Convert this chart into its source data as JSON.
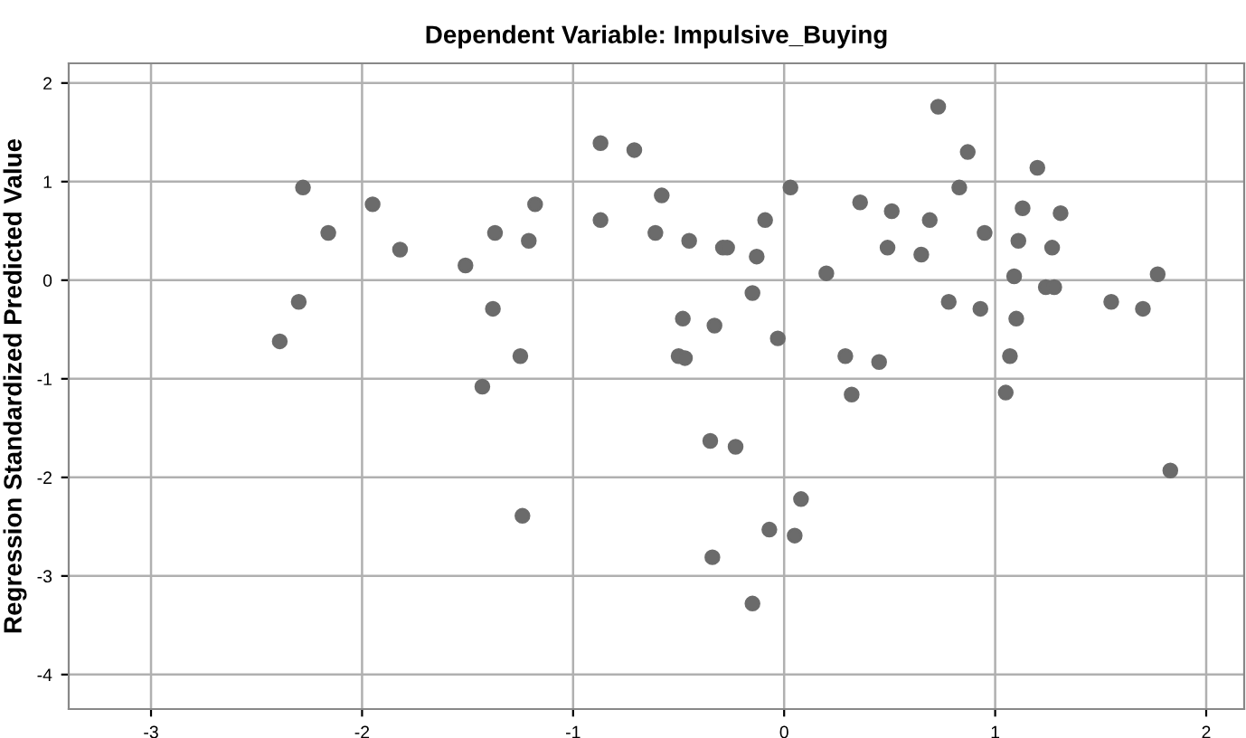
{
  "chart_data": {
    "type": "scatter",
    "title": "Dependent Variable: Impulsive_Buying",
    "ylabel": "Regression Standardized Predicted Value",
    "xlim": [
      -3.39,
      2.18
    ],
    "ylim": [
      -4.35,
      2.2
    ],
    "xticks": [
      -3,
      -2,
      -1,
      0,
      1,
      2
    ],
    "yticks": [
      -4,
      -3,
      -2,
      -1,
      0,
      1,
      2
    ],
    "grid": true,
    "marker": "circle",
    "series": [
      {
        "color": "#6b6b6b",
        "x": [
          -2.39,
          -2.28,
          -2.3,
          -2.16,
          -1.95,
          -1.82,
          -1.51,
          -1.43,
          -1.38,
          -1.37,
          -1.25,
          -1.24,
          -1.21,
          -1.18,
          -0.87,
          -0.87,
          -0.71,
          -0.61,
          -0.58,
          -0.48,
          -0.45,
          -0.5,
          -0.47,
          -0.35,
          -0.33,
          -0.34,
          -0.29,
          -0.27,
          -0.23,
          -0.15,
          -0.15,
          -0.13,
          -0.09,
          -0.07,
          -0.03,
          0.03,
          0.05,
          0.08,
          0.2,
          0.29,
          0.32,
          0.36,
          0.45,
          0.49,
          0.51,
          0.65,
          0.69,
          0.73,
          0.78,
          0.83,
          0.87,
          0.93,
          0.95,
          1.05,
          1.07,
          1.09,
          1.1,
          1.11,
          1.13,
          1.2,
          1.24,
          1.27,
          1.28,
          1.31,
          1.55,
          1.7,
          1.77,
          1.83
        ],
        "values": [
          -0.62,
          0.94,
          -0.22,
          0.48,
          0.77,
          0.31,
          0.15,
          -1.08,
          -0.29,
          0.48,
          -0.77,
          -2.39,
          0.4,
          0.77,
          1.39,
          0.61,
          1.32,
          0.48,
          0.86,
          -0.39,
          0.4,
          -0.77,
          -0.79,
          -1.63,
          -0.46,
          -2.81,
          0.33,
          0.33,
          -1.69,
          -0.13,
          -3.28,
          0.24,
          0.61,
          -2.53,
          -0.59,
          0.94,
          -2.59,
          -2.22,
          0.07,
          -0.77,
          -1.16,
          0.79,
          -0.83,
          0.33,
          0.7,
          0.26,
          0.61,
          1.76,
          -0.22,
          0.94,
          1.3,
          -0.29,
          0.48,
          -1.14,
          -0.77,
          0.04,
          -0.39,
          0.4,
          0.73,
          1.14,
          -0.07,
          0.33,
          -0.07,
          0.68,
          -0.22,
          -0.29,
          0.06,
          -1.93
        ]
      }
    ]
  }
}
